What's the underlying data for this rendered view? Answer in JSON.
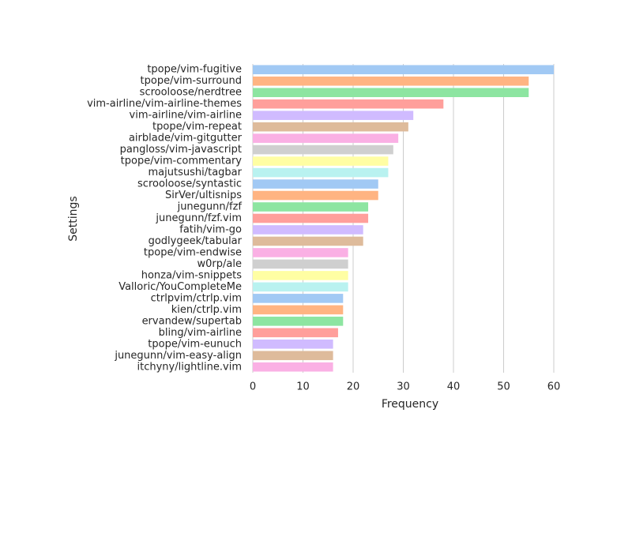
{
  "chart_data": {
    "type": "hbar",
    "x_label": "Frequency",
    "y_label": "Settings",
    "categories": [
      "tpope/vim-fugitive",
      "tpope/vim-surround",
      "scrooloose/nerdtree",
      "vim-airline/vim-airline-themes",
      "vim-airline/vim-airline",
      "tpope/vim-repeat",
      "airblade/vim-gitgutter",
      "pangloss/vim-javascript",
      "tpope/vim-commentary",
      "majutsushi/tagbar",
      "scrooloose/syntastic",
      "SirVer/ultisnips",
      "junegunn/fzf",
      "junegunn/fzf.vim",
      "fatih/vim-go",
      "godlygeek/tabular",
      "tpope/vim-endwise",
      "w0rp/ale",
      "honza/vim-snippets",
      "Valloric/YouCompleteMe",
      "ctrlpvim/ctrlp.vim",
      "kien/ctrlp.vim",
      "ervandew/supertab",
      "bling/vim-airline",
      "tpope/vim-eunuch",
      "junegunn/vim-easy-align",
      "itchyny/lightline.vim"
    ],
    "values": [
      60,
      55,
      55,
      38,
      32,
      31,
      29,
      28,
      27,
      27,
      25,
      25,
      23,
      23,
      22,
      22,
      19,
      19,
      19,
      19,
      18,
      18,
      18,
      17,
      16,
      16,
      16
    ],
    "colors": [
      "#a1c9f4",
      "#ffb482",
      "#8de5a1",
      "#ff9f9b",
      "#d0bbff",
      "#debb9b",
      "#fab0e4",
      "#cfcfcf",
      "#fffea3",
      "#b9f2f0",
      "#a1c9f4",
      "#ffb482",
      "#8de5a1",
      "#ff9f9b",
      "#d0bbff",
      "#debb9b",
      "#fab0e4",
      "#cfcfcf",
      "#fffea3",
      "#b9f2f0",
      "#a1c9f4",
      "#ffb482",
      "#8de5a1",
      "#ff9f9b",
      "#d0bbff",
      "#debb9b",
      "#fab0e4"
    ],
    "xlim": [
      0,
      60
    ],
    "xticks": [
      0,
      10,
      20,
      30,
      40,
      50,
      60
    ],
    "grid": true
  }
}
